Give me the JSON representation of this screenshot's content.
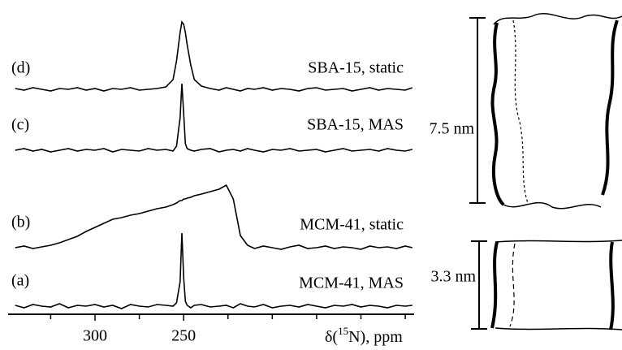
{
  "chart_data": {
    "type": "line",
    "x": [
      345,
      340,
      335,
      330,
      325,
      320,
      315,
      310,
      305,
      300,
      295,
      290,
      285,
      280,
      275,
      270,
      265,
      260,
      256,
      254,
      252,
      251,
      250,
      249,
      248,
      246,
      244,
      240,
      235,
      230,
      226,
      222,
      218,
      214,
      210,
      205,
      200,
      195,
      190,
      185,
      180,
      175,
      170,
      165,
      160,
      155,
      150,
      145,
      140,
      135,
      130,
      125,
      121
    ],
    "xlim": [
      349,
      120
    ],
    "xticks": [
      300,
      250
    ],
    "xminor": [
      325,
      275,
      225,
      200,
      175,
      150,
      125
    ],
    "xlabel": {
      "prefix": "δ(",
      "sup": "15",
      "suffix": "N), ppm"
    },
    "series": [
      {
        "tag": "(a)",
        "name": "MCM-41, MAS",
        "color": "#000000",
        "values": [
          1,
          -2,
          2,
          0,
          -1,
          3,
          -2,
          1,
          0,
          2,
          -1,
          1,
          -3,
          2,
          0,
          -1,
          2,
          1,
          0,
          4,
          30,
          90,
          35,
          6,
          1,
          -2,
          1,
          2,
          -1,
          0,
          1,
          -2,
          3,
          0,
          -1,
          2,
          -2,
          0,
          1,
          -1,
          2,
          0,
          -2,
          1,
          0,
          2,
          -1,
          1,
          0,
          -2,
          1,
          0,
          1
        ]
      },
      {
        "tag": "(b)",
        "name": "MCM-41, static",
        "color": "#000000",
        "values": [
          0,
          2,
          -1,
          1,
          3,
          6,
          10,
          14,
          20,
          25,
          30,
          35,
          37,
          40,
          42,
          45,
          48,
          50,
          53,
          55,
          58,
          58,
          60,
          60,
          61,
          62,
          64,
          66,
          69,
          72,
          77,
          60,
          15,
          3,
          -1,
          2,
          0,
          -2,
          1,
          3,
          -1,
          0,
          2,
          -1,
          1,
          0,
          -2,
          2,
          0,
          1,
          -1,
          2,
          0
        ]
      },
      {
        "tag": "(c)",
        "name": "SBA-15, MAS",
        "color": "#000000",
        "values": [
          0,
          2,
          -1,
          1,
          -2,
          0,
          2,
          -1,
          1,
          0,
          2,
          -2,
          1,
          0,
          -1,
          2,
          0,
          1,
          -1,
          5,
          40,
          82,
          45,
          8,
          2,
          0,
          -1,
          1,
          2,
          -2,
          0,
          1,
          -1,
          2,
          0,
          -2,
          1,
          0,
          2,
          -1,
          0,
          1,
          -2,
          0,
          2,
          -1,
          0,
          1,
          -1,
          2,
          0,
          -1,
          1
        ]
      },
      {
        "tag": "(d)",
        "name": "SBA-15, static",
        "color": "#000000",
        "values": [
          1,
          -1,
          2,
          0,
          -2,
          1,
          0,
          2,
          -1,
          1,
          -2,
          1,
          0,
          2,
          -1,
          0,
          1,
          3,
          12,
          35,
          70,
          83,
          80,
          70,
          55,
          30,
          12,
          4,
          1,
          -1,
          2,
          0,
          -2,
          1,
          0,
          2,
          -1,
          1,
          0,
          -2,
          1,
          2,
          -1,
          0,
          1,
          -2,
          0,
          2,
          -1,
          1,
          0,
          -1,
          2
        ]
      }
    ]
  },
  "diagram": {
    "pores": [
      {
        "size": "7.5 nm"
      },
      {
        "size": "3.3 nm"
      }
    ]
  }
}
